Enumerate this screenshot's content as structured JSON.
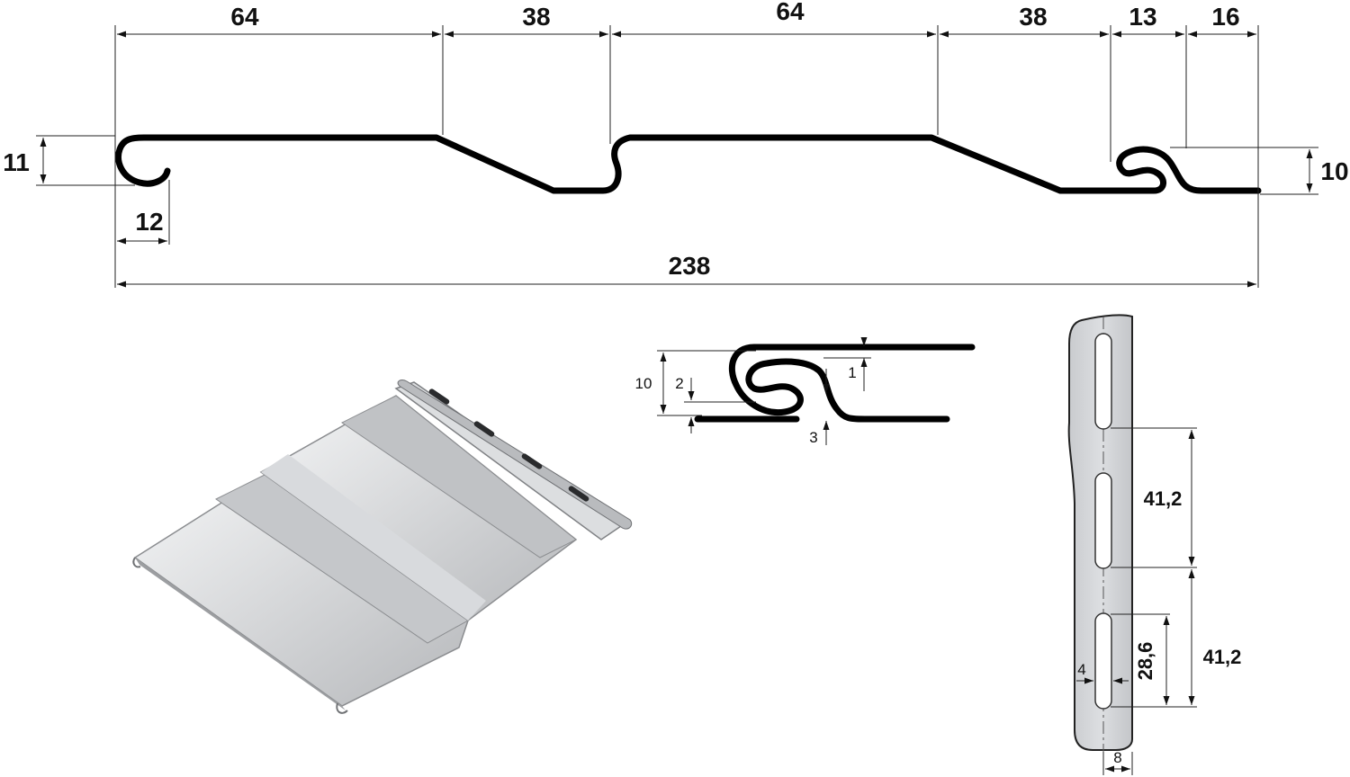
{
  "profile_dimensions": {
    "segment_1": "64",
    "segment_2": "38",
    "segment_3": "64",
    "segment_4": "38",
    "segment_5": "13",
    "segment_6": "16",
    "left_height": "11",
    "right_height": "10",
    "hook_width": "12",
    "overall_width": "238"
  },
  "lock_detail": {
    "lock_height": "10",
    "inner_gap": "2",
    "top_gap": "1",
    "bottom_gap": "3"
  },
  "nail_strip": {
    "slot_pitch_1": "41,2",
    "slot_pitch_2": "41,2",
    "slot_length": "28,6",
    "slot_width": "4",
    "strip_offset": "8"
  },
  "colors": {
    "profile_line": "#000000",
    "panel_light": "#e4e6e8",
    "panel_shade": "#9a9c9f",
    "strip_fill": "#d3d5d8"
  }
}
